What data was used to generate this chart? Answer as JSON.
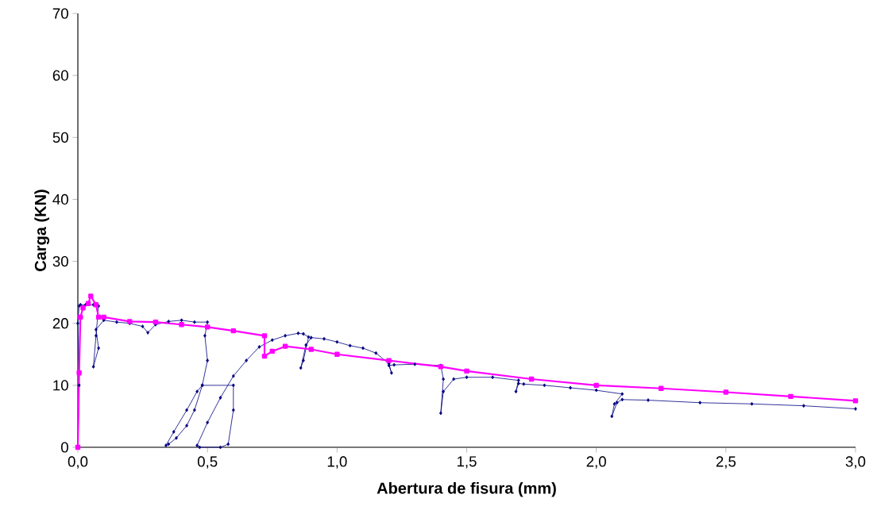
{
  "chart_data": {
    "type": "line",
    "xlabel": "Abertura de fisura (mm)",
    "ylabel": "Carga (KN)",
    "xlim": [
      0,
      3
    ],
    "ylim": [
      0,
      70
    ],
    "xticks": [
      {
        "value": 0,
        "label": "0,0"
      },
      {
        "value": 0.5,
        "label": "0,5"
      },
      {
        "value": 1,
        "label": "1,0"
      },
      {
        "value": 1.5,
        "label": "1,5"
      },
      {
        "value": 2,
        "label": "2,0"
      },
      {
        "value": 2.5,
        "label": "2,5"
      },
      {
        "value": 3,
        "label": "3,0"
      }
    ],
    "yticks": [
      0,
      10,
      20,
      30,
      40,
      50,
      60,
      70
    ],
    "grid": false,
    "line_style": "solid",
    "series": [
      {
        "color": "#000080",
        "marker": "diamond",
        "x": [
          0,
          0.005,
          0,
          0.005,
          0.01,
          0.03,
          0.06,
          0.08,
          0.07,
          0.06,
          0.08,
          0.07,
          0.1,
          0.15,
          0.2,
          0.25,
          0.27,
          0.3,
          0.35,
          0.4,
          0.45,
          0.5,
          0.49,
          0.5,
          0.48,
          0.45,
          0.42,
          0.38,
          0.35,
          0.34,
          0.37,
          0.42,
          0.46,
          0.48,
          0.6,
          0.6,
          0.58,
          0.55,
          0.47,
          0.46,
          0.5,
          0.55,
          0.6,
          0.65,
          0.7,
          0.75,
          0.8,
          0.85,
          0.87,
          0.89,
          0.87,
          0.86,
          0.88,
          0.9,
          0.95,
          1.0,
          1.05,
          1.1,
          1.15,
          1.2,
          1.21,
          1.2,
          1.22,
          1.3,
          1.4,
          1.41,
          1.4,
          1.41,
          1.45,
          1.5,
          1.6,
          1.7,
          1.69,
          1.7,
          1.72,
          1.8,
          1.9,
          2.0,
          2.1,
          2.07,
          2.06,
          2.08,
          2.1,
          2.2,
          2.4,
          2.6,
          2.8,
          3.0
        ],
        "values": [
          0,
          10,
          20,
          22.8,
          23,
          23,
          23,
          22.8,
          18,
          13,
          16,
          19,
          20.5,
          20.2,
          20,
          19.5,
          18.5,
          19.8,
          20.3,
          20.5,
          20.2,
          20.2,
          18,
          14,
          10,
          6,
          3.5,
          1.5,
          0.5,
          0.3,
          2.5,
          6,
          9,
          10,
          10,
          6,
          0.5,
          0,
          0,
          0.3,
          4,
          8,
          11.5,
          14,
          16.2,
          17.3,
          18,
          18.4,
          18.3,
          17.8,
          14,
          12.8,
          16.5,
          17.7,
          17.5,
          17,
          16.4,
          16,
          15.2,
          13.5,
          12,
          13.2,
          13.3,
          13.4,
          13.2,
          11,
          5.5,
          9,
          11,
          11.3,
          11.3,
          10.8,
          9,
          10.3,
          10.2,
          10,
          9.6,
          9.2,
          8.6,
          7,
          5,
          7.2,
          7.7,
          7.6,
          7.2,
          7.0,
          6.7,
          6.2
        ]
      },
      {
        "color": "#ff00ff",
        "marker": "square",
        "x": [
          0,
          0.005,
          0.01,
          0.02,
          0.04,
          0.05,
          0.07,
          0.08,
          0.1,
          0.2,
          0.3,
          0.4,
          0.5,
          0.6,
          0.72,
          0.72,
          0.75,
          0.8,
          0.9,
          1.0,
          1.2,
          1.4,
          1.5,
          1.75,
          2.0,
          2.25,
          2.5,
          2.75,
          3.0
        ],
        "values": [
          0,
          12,
          21,
          22.5,
          23.2,
          24.4,
          23,
          21,
          21,
          20.3,
          20.2,
          19.8,
          19.4,
          18.8,
          18,
          14.7,
          15.5,
          16.3,
          15.8,
          15,
          14,
          13,
          12.3,
          11,
          10,
          9.5,
          8.9,
          8.2,
          7.5
        ]
      }
    ]
  }
}
